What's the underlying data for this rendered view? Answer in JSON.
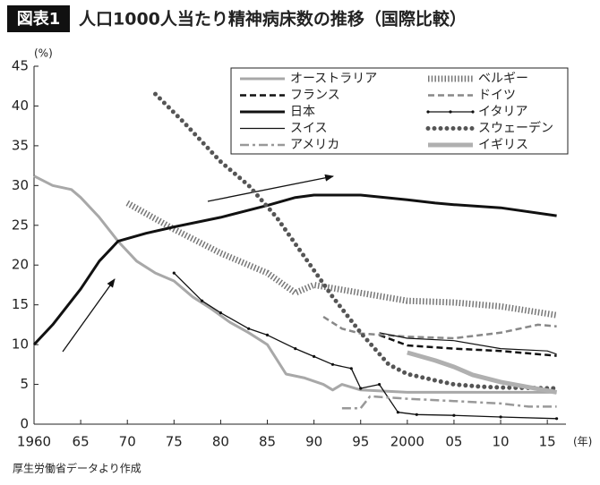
{
  "chart_data": {
    "type": "line",
    "badge": "図表1",
    "title": "人口1000人当たり精神病床数の推移（国際比較）",
    "y_unit": "(%)",
    "x_unit": "(年)",
    "source": "厚生労働省データより作成",
    "xlim": [
      1960,
      2017
    ],
    "ylim": [
      0,
      45
    ],
    "yticks": [
      0,
      5,
      10,
      15,
      20,
      25,
      30,
      35,
      40,
      45
    ],
    "xticks": [
      1960,
      {
        "value": 1965,
        "label": "65"
      },
      {
        "value": 1970,
        "label": "70"
      },
      {
        "value": 1975,
        "label": "75"
      },
      {
        "value": 1980,
        "label": "80"
      },
      {
        "value": 1985,
        "label": "85"
      },
      {
        "value": 1990,
        "label": "90"
      },
      {
        "value": 1995,
        "label": "95"
      },
      2000,
      {
        "value": 2005,
        "label": "05"
      },
      {
        "value": 2010,
        "label": "10"
      },
      {
        "value": 2015,
        "label": "15"
      }
    ],
    "series": [
      {
        "name": "オーストラリア",
        "color": "#a8a8a8",
        "line_style": "solid",
        "width": 3,
        "x": [
          1960,
          1962,
          1964,
          1965,
          1967,
          1969,
          1971,
          1973,
          1975,
          1977,
          1979,
          1981,
          1983,
          1985,
          1987,
          1989,
          1991,
          1992,
          1993,
          1995,
          2000,
          2005,
          2010,
          2016
        ],
        "values": [
          31.2,
          30,
          29.5,
          28.5,
          26,
          23,
          20.5,
          19,
          18,
          16,
          14.5,
          12.8,
          11.5,
          10,
          6.3,
          5.8,
          5,
          4.3,
          5,
          4.3,
          4,
          4,
          4,
          4
        ]
      },
      {
        "name": "ベルギー",
        "color": "#777777",
        "line_style": "hatched",
        "width": 7,
        "x": [
          1970,
          1975,
          1980,
          1985,
          1988,
          1990,
          1995,
          2000,
          2005,
          2010,
          2016
        ],
        "values": [
          27.8,
          24.5,
          21.5,
          19,
          16.5,
          17.5,
          16.5,
          15.5,
          15.3,
          14.8,
          13.7
        ]
      },
      {
        "name": "フランス",
        "color": "#111111",
        "line_style": "dashed",
        "width": 2.5,
        "x": [
          1997,
          2000,
          2005,
          2010,
          2016
        ],
        "values": [
          11.2,
          9.9,
          9.5,
          9.2,
          8.6
        ]
      },
      {
        "name": "ドイツ",
        "color": "#888888",
        "line_style": "dashed",
        "width": 2.5,
        "x": [
          1991,
          1993,
          1995,
          2000,
          2005,
          2010,
          2014,
          2016
        ],
        "values": [
          13.5,
          12,
          11.4,
          11,
          10.8,
          11.5,
          12.5,
          12.3
        ]
      },
      {
        "name": "日本",
        "color": "#111111",
        "line_style": "solid",
        "width": 3,
        "x": [
          1960,
          1962,
          1965,
          1967,
          1969,
          1972,
          1975,
          1980,
          1985,
          1988,
          1990,
          1995,
          2000,
          2003,
          2005,
          2010,
          2016
        ],
        "values": [
          10,
          12.5,
          17,
          20.5,
          23,
          24,
          24.8,
          26,
          27.5,
          28.5,
          28.8,
          28.8,
          28.2,
          27.8,
          27.6,
          27.2,
          26.2
        ]
      },
      {
        "name": "イタリア",
        "color": "#111111",
        "line_style": "dot-marker",
        "width": 1.3,
        "x": [
          1975,
          1978,
          1980,
          1983,
          1985,
          1988,
          1990,
          1992,
          1994,
          1995,
          1997,
          1999,
          2001,
          2005,
          2010,
          2016
        ],
        "values": [
          19,
          15.5,
          14,
          12,
          11.2,
          9.5,
          8.5,
          7.5,
          7,
          4.5,
          5,
          1.5,
          1.2,
          1.1,
          0.9,
          0.7
        ]
      },
      {
        "name": "スイス",
        "color": "#111111",
        "line_style": "solid",
        "width": 1.2,
        "x": [
          1997,
          2000,
          2005,
          2010,
          2015,
          2016
        ],
        "values": [
          11.5,
          10.8,
          10.5,
          9.5,
          9.2,
          8.8
        ]
      },
      {
        "name": "スウェーデン",
        "color": "#555555",
        "line_style": "dotted",
        "width": 5,
        "x": [
          1973,
          1976,
          1980,
          1983,
          1986,
          1989,
          1992,
          1995,
          1998,
          2000,
          2003,
          2005,
          2008,
          2010,
          2016
        ],
        "values": [
          41.5,
          38,
          33,
          30,
          26,
          21,
          16,
          11.5,
          7.5,
          6.3,
          5.5,
          5,
          4.7,
          4.6,
          4.5
        ]
      },
      {
        "name": "アメリカ",
        "color": "#999999",
        "line_style": "dash-dot",
        "width": 2.5,
        "x": [
          1993,
          1995,
          1996,
          2000,
          2005,
          2010,
          2013,
          2016
        ],
        "values": [
          2,
          2,
          3.5,
          3.2,
          2.9,
          2.6,
          2.2,
          2.2
        ]
      },
      {
        "name": "イギリス",
        "color": "#b0b0b0",
        "line_style": "solid",
        "width": 5,
        "x": [
          2000,
          2003,
          2005,
          2007,
          2010,
          2016
        ],
        "values": [
          9,
          8,
          7.2,
          6.2,
          5.3,
          4
        ]
      }
    ]
  }
}
